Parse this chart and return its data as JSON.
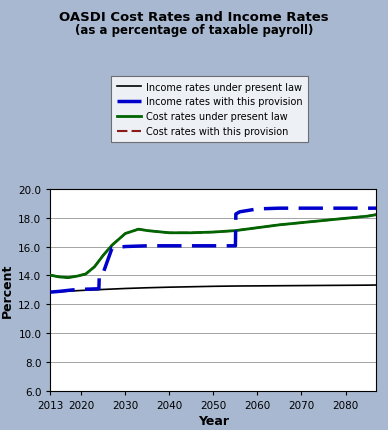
{
  "title": "OASDI Cost Rates and Income Rates",
  "subtitle": "(as a percentage of taxable payroll)",
  "xlabel": "Year",
  "ylabel": "Percent",
  "ylim": [
    6.0,
    20.0
  ],
  "yticks": [
    6.0,
    8.0,
    10.0,
    12.0,
    14.0,
    16.0,
    18.0,
    20.0
  ],
  "xlim": [
    2013,
    2087
  ],
  "bg_color": "#a8b8d0",
  "plot_bg_color": "#ffffff",
  "legend_labels": [
    "Income rates under present law",
    "Income rates with this provision",
    "Cost rates under present law",
    "Cost rates with this provision"
  ],
  "income_present_law_x": [
    2013,
    2015,
    2018,
    2021,
    2024,
    2027,
    2030,
    2035,
    2040,
    2045,
    2050,
    2055,
    2060,
    2065,
    2070,
    2075,
    2080,
    2085,
    2087
  ],
  "income_present_law_y": [
    12.85,
    12.88,
    12.93,
    12.98,
    13.02,
    13.06,
    13.1,
    13.15,
    13.19,
    13.22,
    13.25,
    13.27,
    13.28,
    13.29,
    13.3,
    13.31,
    13.32,
    13.33,
    13.34
  ],
  "income_provision_x": [
    2013,
    2015,
    2018,
    2021,
    2023,
    2024,
    2024.1,
    2025,
    2027,
    2030,
    2035,
    2040,
    2045,
    2050,
    2054,
    2055,
    2055.1,
    2056,
    2060,
    2065,
    2070,
    2075,
    2080,
    2085,
    2087
  ],
  "income_provision_y": [
    12.85,
    12.9,
    13.0,
    13.05,
    13.07,
    13.08,
    14.1,
    14.2,
    15.9,
    16.0,
    16.05,
    16.05,
    16.05,
    16.05,
    16.05,
    16.05,
    18.25,
    18.4,
    18.6,
    18.65,
    18.65,
    18.65,
    18.65,
    18.65,
    18.65
  ],
  "cost_present_law_x": [
    2013,
    2015,
    2017,
    2019,
    2021,
    2023,
    2025,
    2027,
    2030,
    2033,
    2035,
    2040,
    2045,
    2050,
    2055,
    2060,
    2065,
    2070,
    2075,
    2080,
    2085,
    2087
  ],
  "cost_present_law_y": [
    14.02,
    13.9,
    13.85,
    13.95,
    14.1,
    14.6,
    15.4,
    16.1,
    16.9,
    17.2,
    17.1,
    16.95,
    16.95,
    17.0,
    17.1,
    17.3,
    17.5,
    17.65,
    17.8,
    17.95,
    18.1,
    18.2
  ],
  "cost_provision_x": [
    2013,
    2015,
    2017,
    2019,
    2021,
    2023,
    2025,
    2027,
    2030,
    2033,
    2035,
    2040,
    2045,
    2050,
    2055,
    2060,
    2065,
    2070,
    2075,
    2080,
    2085,
    2087
  ],
  "cost_provision_y": [
    14.02,
    13.9,
    13.85,
    13.95,
    14.1,
    14.6,
    15.4,
    16.1,
    16.9,
    17.2,
    17.1,
    16.95,
    16.95,
    17.0,
    17.1,
    17.3,
    17.5,
    17.65,
    17.8,
    17.95,
    18.1,
    18.22
  ]
}
